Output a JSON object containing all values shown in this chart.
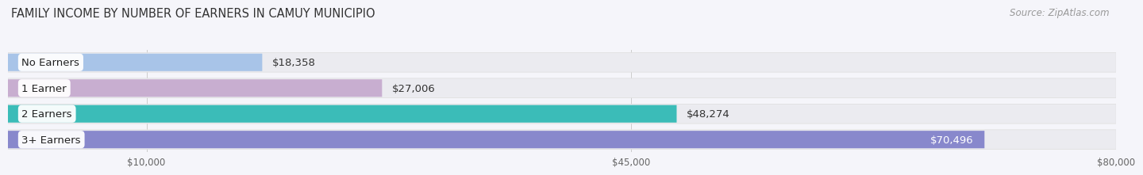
{
  "title": "FAMILY INCOME BY NUMBER OF EARNERS IN CAMUY MUNICIPIO",
  "source": "Source: ZipAtlas.com",
  "categories": [
    "No Earners",
    "1 Earner",
    "2 Earners",
    "3+ Earners"
  ],
  "values": [
    18358,
    27006,
    48274,
    70496
  ],
  "labels": [
    "$18,358",
    "$27,006",
    "$48,274",
    "$70,496"
  ],
  "bar_colors": [
    "#a8c4e8",
    "#c8aed0",
    "#3bbcb8",
    "#8888cc"
  ],
  "bar_bg_color": "#ebebf0",
  "xlim": [
    0,
    80000
  ],
  "xticks": [
    10000,
    45000,
    80000
  ],
  "xtick_labels": [
    "$10,000",
    "$45,000",
    "$80,000"
  ],
  "background_color": "#f5f5fa",
  "title_fontsize": 10.5,
  "source_fontsize": 8.5,
  "label_fontsize": 9.5,
  "category_fontsize": 9.5,
  "label_white_threshold": 3,
  "grid_color": "#cccccc"
}
